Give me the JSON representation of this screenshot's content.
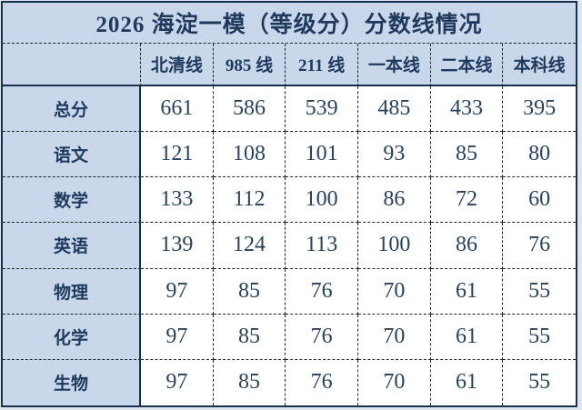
{
  "title": "2026 海淀一模（等级分）分数线情况",
  "colors": {
    "background": "#c8d7ea",
    "cell_background": "#ffffff",
    "text": "#1f3a5d",
    "border_solid": "#17304e",
    "border_dashed": "#20262e"
  },
  "chart_data": {
    "type": "table",
    "title": "2026 海淀一模（等级分）分数线情况",
    "corner_label": "",
    "categories": [
      "北清线",
      "985 线",
      "211 线",
      "一本线",
      "二本线",
      "本科线"
    ],
    "series": [
      {
        "name": "总分",
        "values": [
          661,
          586,
          539,
          485,
          433,
          395
        ]
      },
      {
        "name": "语文",
        "values": [
          121,
          108,
          101,
          93,
          85,
          80
        ]
      },
      {
        "name": "数学",
        "values": [
          133,
          112,
          100,
          86,
          72,
          60
        ]
      },
      {
        "name": "英语",
        "values": [
          139,
          124,
          113,
          100,
          86,
          76
        ]
      },
      {
        "name": "物理",
        "values": [
          97,
          85,
          76,
          70,
          61,
          55
        ]
      },
      {
        "name": "化学",
        "values": [
          97,
          85,
          76,
          70,
          61,
          55
        ]
      },
      {
        "name": "生物",
        "values": [
          97,
          85,
          76,
          70,
          61,
          55
        ]
      }
    ],
    "layout": {
      "grid": "dashed-inner-borders",
      "header_separator": "solid",
      "legend": "none"
    }
  }
}
